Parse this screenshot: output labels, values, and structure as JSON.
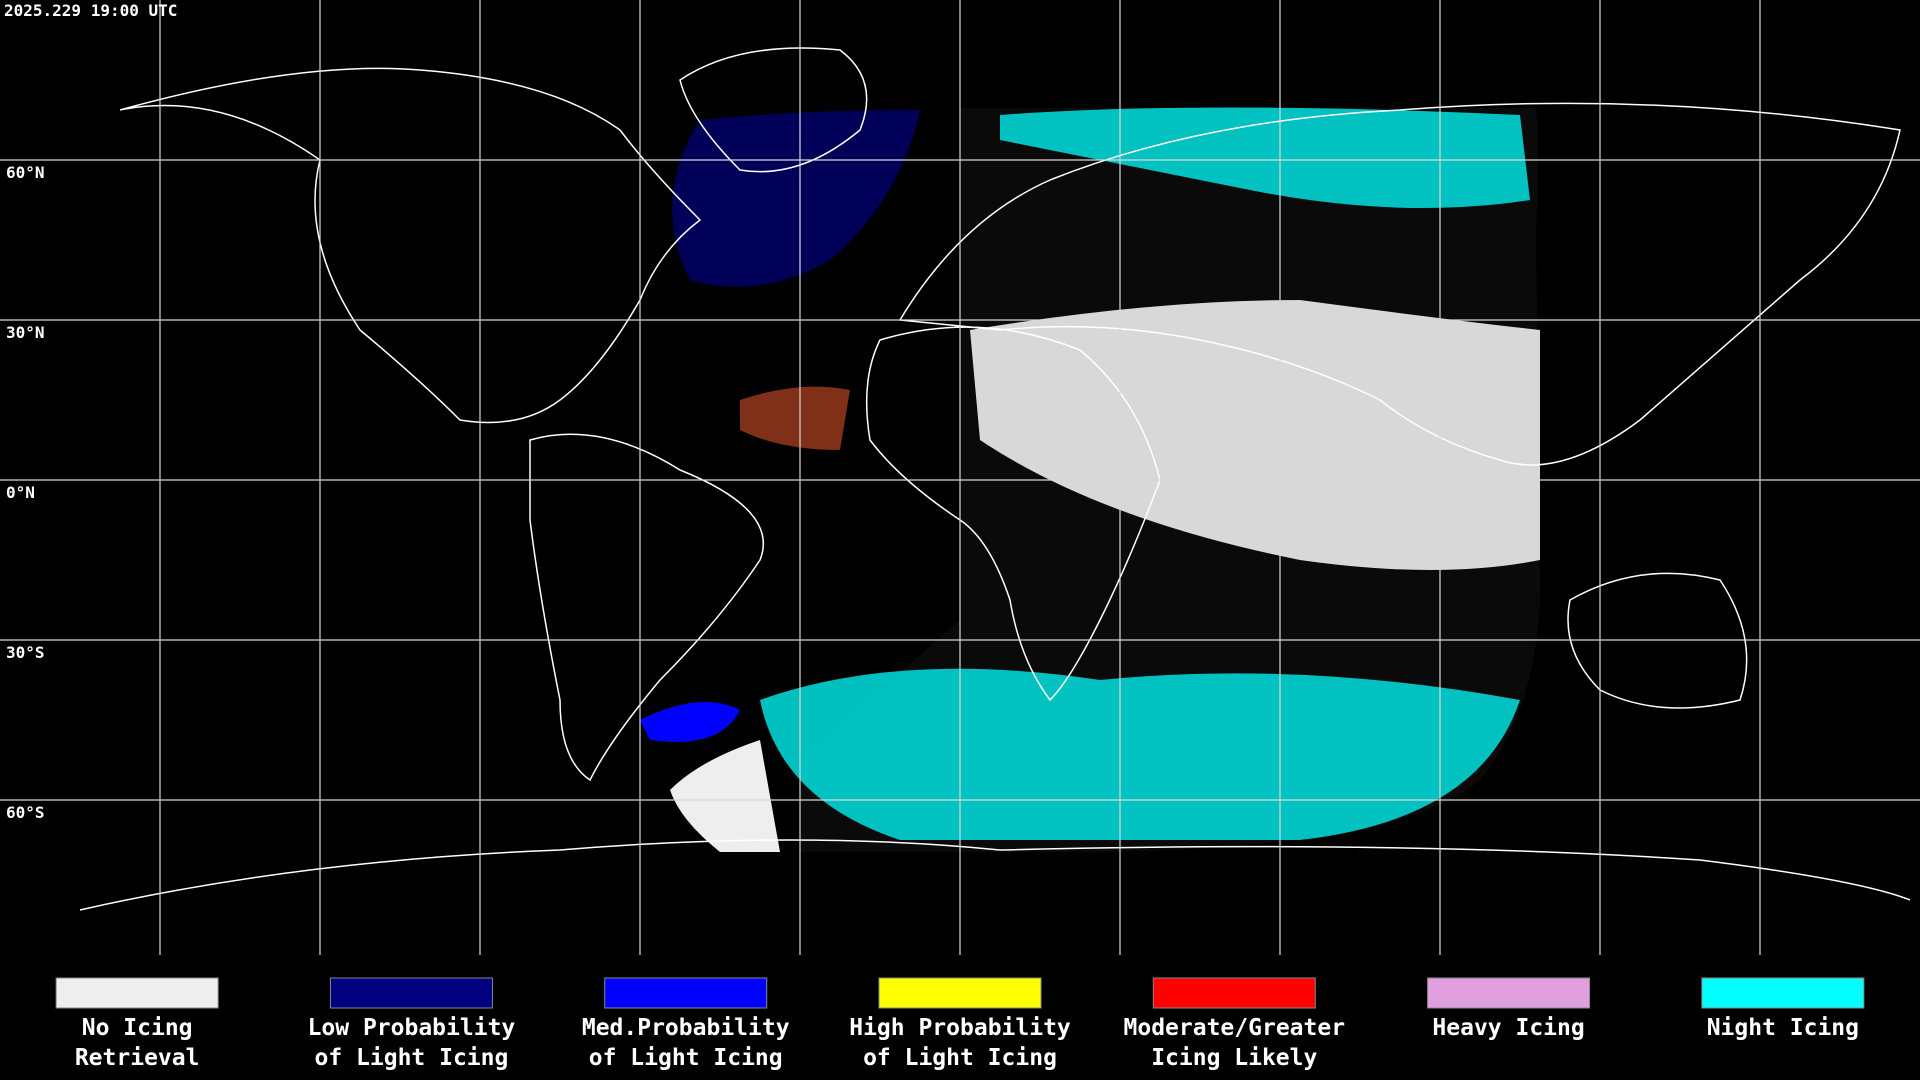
{
  "header": {
    "timestamp": "2025.229 19:00 UTC"
  },
  "latitude_labels": [
    "60°N",
    "30°N",
    "0°N",
    "30°S",
    "60°S"
  ],
  "legend": [
    {
      "lines": [
        "No Icing",
        "Retrieval"
      ],
      "color": "#eeeeee"
    },
    {
      "lines": [
        "Low Probability",
        "of Light Icing"
      ],
      "color": "#000080"
    },
    {
      "lines": [
        "Med.Probability",
        "of Light Icing"
      ],
      "color": "#0000ff"
    },
    {
      "lines": [
        "High Probability",
        "of Light Icing"
      ],
      "color": "#ffff00"
    },
    {
      "lines": [
        "Moderate/Greater",
        "Icing Likely"
      ],
      "color": "#ff0000"
    },
    {
      "lines": [
        "Heavy Icing"
      ],
      "color": "#e0a0e0"
    },
    {
      "lines": [
        "Night Icing"
      ],
      "color": "#00ffff"
    }
  ]
}
